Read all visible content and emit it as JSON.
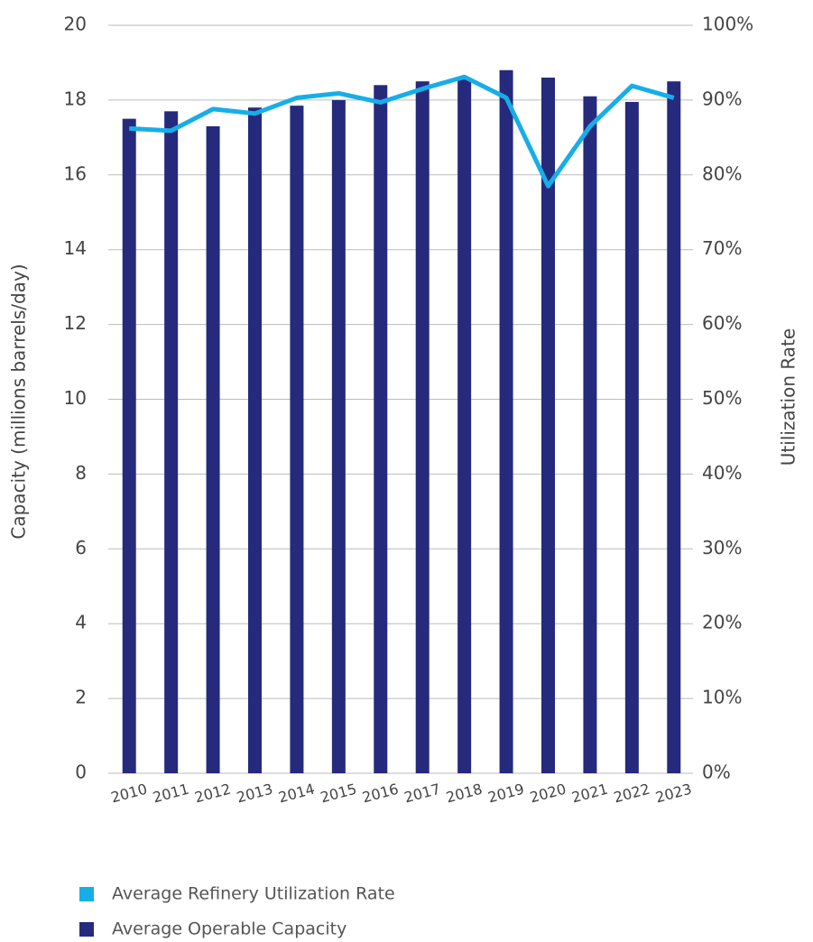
{
  "chart_data": {
    "type": "bar",
    "y_label": "Capacity (millions barrels/day)",
    "y2_label": "Utilization Rate",
    "categories": [
      "2010",
      "2011",
      "2012",
      "2013",
      "2014",
      "2015",
      "2016",
      "2017",
      "2018",
      "2019",
      "2020",
      "2021",
      "2022",
      "2023"
    ],
    "series": [
      {
        "name": "Average Refinery Utilization Rate",
        "type": "line",
        "axis": "y2",
        "color": "#17aee8",
        "values": [
          86.2,
          85.9,
          88.8,
          88.2,
          90.3,
          90.9,
          89.7,
          91.5,
          93.1,
          90.3,
          78.5,
          86.5,
          91.9,
          90.3
        ]
      },
      {
        "name": "Average Operable Capacity",
        "type": "bar",
        "axis": "y",
        "color": "#262a7c",
        "values": [
          17.5,
          17.7,
          17.3,
          17.8,
          17.85,
          18.0,
          18.4,
          18.5,
          18.6,
          18.8,
          18.6,
          18.1,
          17.95,
          18.5
        ]
      }
    ],
    "ylim": [
      0,
      20
    ],
    "yticks": [
      0,
      2,
      4,
      6,
      8,
      10,
      12,
      14,
      16,
      18,
      20
    ],
    "y2lim": [
      0,
      100
    ],
    "y2ticks": [
      {
        "value": 0,
        "label": "0%"
      },
      {
        "value": 10,
        "label": "10%"
      },
      {
        "value": 20,
        "label": "20%"
      },
      {
        "value": 30,
        "label": "30%"
      },
      {
        "value": 40,
        "label": "40%"
      },
      {
        "value": 50,
        "label": "50%"
      },
      {
        "value": 60,
        "label": "60%"
      },
      {
        "value": 70,
        "label": "70%"
      },
      {
        "value": 80,
        "label": "80%"
      },
      {
        "value": 90,
        "label": "90%"
      },
      {
        "value": 100,
        "label": "100%"
      }
    ],
    "grid": true
  }
}
